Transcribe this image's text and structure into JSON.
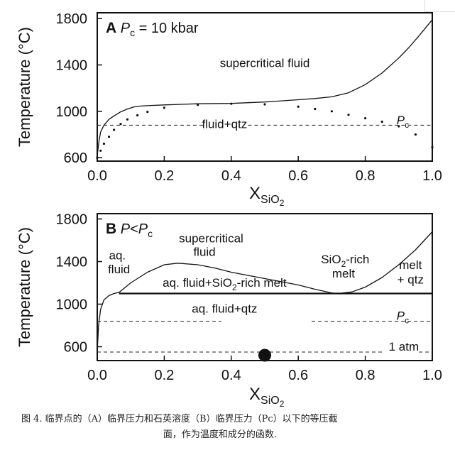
{
  "chart_data": [
    {
      "type": "line",
      "panel_letter": "A",
      "panel_title_var": "P",
      "panel_title_sub": "c",
      "panel_title_rest": " = 10 kbar",
      "xlabel_main": "X",
      "xlabel_sub": "SiO",
      "xlabel_subsub": "2",
      "ylabel": "Temperature (°C)",
      "xlim": [
        0,
        1
      ],
      "ylim": [
        570,
        1850
      ],
      "xticks": [
        0.0,
        0.2,
        0.4,
        0.6,
        0.8,
        1.0
      ],
      "xtick_labels": [
        "0.0",
        "0.2",
        "0.4",
        "0.6",
        "0.8",
        "1.0"
      ],
      "yticks": [
        600,
        1000,
        1400,
        1800
      ],
      "ytick_labels": [
        "600",
        "1000",
        "1400",
        "1800"
      ],
      "grid": false,
      "series": [
        {
          "style": "solid",
          "x": [
            0.0,
            0.005,
            0.01,
            0.02,
            0.035,
            0.05,
            0.07,
            0.09,
            0.11,
            0.13,
            0.16,
            0.2,
            0.25,
            0.3,
            0.4,
            0.5,
            0.55,
            0.6,
            0.65,
            0.7,
            0.75,
            0.8,
            0.85,
            0.9,
            0.93,
            0.96,
            0.98,
            1.0
          ],
          "y": [
            620,
            740,
            820,
            880,
            930,
            960,
            995,
            1020,
            1038,
            1045,
            1050,
            1055,
            1060,
            1065,
            1068,
            1080,
            1090,
            1100,
            1110,
            1125,
            1160,
            1230,
            1330,
            1460,
            1550,
            1650,
            1720,
            1790
          ]
        },
        {
          "style": "dotted",
          "x": [
            0.0,
            0.01,
            0.02,
            0.035,
            0.05,
            0.07,
            0.09,
            0.12,
            0.15,
            0.2,
            0.3,
            0.4,
            0.5,
            0.6,
            0.65,
            0.7,
            0.75,
            0.8,
            0.85,
            0.9,
            0.95,
            1.0
          ],
          "y": [
            600,
            660,
            720,
            780,
            840,
            890,
            930,
            965,
            995,
            1030,
            1055,
            1065,
            1060,
            1040,
            1020,
            1000,
            970,
            940,
            910,
            870,
            800,
            690
          ]
        },
        {
          "style": "dashed",
          "x": [
            0.0,
            1.0
          ],
          "y": [
            880,
            880
          ],
          "gaps_x": [
            [
              0.32,
              0.45
            ]
          ]
        }
      ],
      "annotations": [
        {
          "text": "supercritical fluid",
          "x": 0.5,
          "y": 1380
        },
        {
          "text": "fluid+qtz",
          "x": 0.38,
          "y": 855
        },
        {
          "text_var": "P",
          "text_sub": "c",
          "x": 0.912,
          "y": 890
        }
      ]
    },
    {
      "type": "line",
      "panel_letter": "B",
      "panel_title_var": "P",
      "panel_title_rest": "<",
      "panel_title_var2": "P",
      "panel_title_sub": "c",
      "xlabel_main": "X",
      "xlabel_sub": "SiO",
      "xlabel_subsub": "2",
      "ylabel": "Temperature (°C)",
      "xlim": [
        0,
        1
      ],
      "ylim": [
        470,
        1850
      ],
      "xticks": [
        0.0,
        0.2,
        0.4,
        0.6,
        0.8,
        1.0
      ],
      "xtick_labels": [
        "0.0",
        "0.2",
        "0.4",
        "0.6",
        "0.8",
        "1.0"
      ],
      "yticks": [
        600,
        1000,
        1400,
        1800
      ],
      "ytick_labels": [
        "600",
        "1000",
        "1400",
        "1800"
      ],
      "grid": false,
      "series": [
        {
          "style": "solid",
          "x": [
            0.0,
            0.004,
            0.01,
            0.02,
            0.035,
            0.05,
            0.065,
            0.1,
            0.15,
            0.2,
            0.24,
            0.3,
            0.35,
            0.4,
            0.5,
            0.6,
            0.65,
            0.7,
            0.72,
            0.76,
            0.8,
            0.85,
            0.9,
            0.95,
            1.0
          ],
          "y": [
            560,
            800,
            950,
            1040,
            1080,
            1100,
            1110,
            1200,
            1300,
            1370,
            1385,
            1370,
            1340,
            1300,
            1240,
            1180,
            1140,
            1105,
            1100,
            1115,
            1160,
            1250,
            1370,
            1510,
            1680
          ]
        },
        {
          "style": "solid-thick",
          "x": [
            0.065,
            1.0
          ],
          "y": [
            1100,
            1100
          ]
        },
        {
          "style": "dashed",
          "x": [
            0.0,
            1.0
          ],
          "y": [
            840,
            840
          ],
          "gaps_x": [
            [
              0.37,
              0.64
            ]
          ]
        },
        {
          "style": "dashed",
          "x": [
            0.0,
            1.0
          ],
          "y": [
            550,
            550
          ],
          "gaps_x": [
            [
              0.85,
              0.96
            ]
          ]
        }
      ],
      "markers": [
        {
          "x": 0.5,
          "y": 520
        }
      ],
      "annotations": [
        {
          "text": "supercritical",
          "x": 0.34,
          "y": 1580
        },
        {
          "text": "fluid",
          "x": 0.32,
          "y": 1455
        },
        {
          "text": "aq.",
          "x": 0.06,
          "y": 1420
        },
        {
          "text": "fluid",
          "x": 0.065,
          "y": 1290
        },
        {
          "text": "aq. fluid+SiO",
          "text_sub": "2",
          "text_rest": "-rich melt",
          "x": 0.38,
          "y": 1165
        },
        {
          "text": "SiO",
          "text_sub": "2",
          "text_rest": "-rich",
          "x": 0.74,
          "y": 1385
        },
        {
          "text": "melt",
          "x": 0.735,
          "y": 1250
        },
        {
          "text": "melt",
          "x": 0.935,
          "y": 1330
        },
        {
          "text": "+ qtz",
          "x": 0.935,
          "y": 1195
        },
        {
          "text": "aq. fluid+qtz",
          "x": 0.38,
          "y": 920
        },
        {
          "text_var": "P",
          "text_sub": "c",
          "x": 0.912,
          "y": 855
        },
        {
          "text": "1 atm",
          "x": 0.915,
          "y": 565
        }
      ]
    }
  ],
  "caption": {
    "line1": "图 4. 临界点的（A）临界压力和石英溶度（B）临界压力（Pc）以下的等压截",
    "line2": "面，作为温度和成分的函数."
  }
}
